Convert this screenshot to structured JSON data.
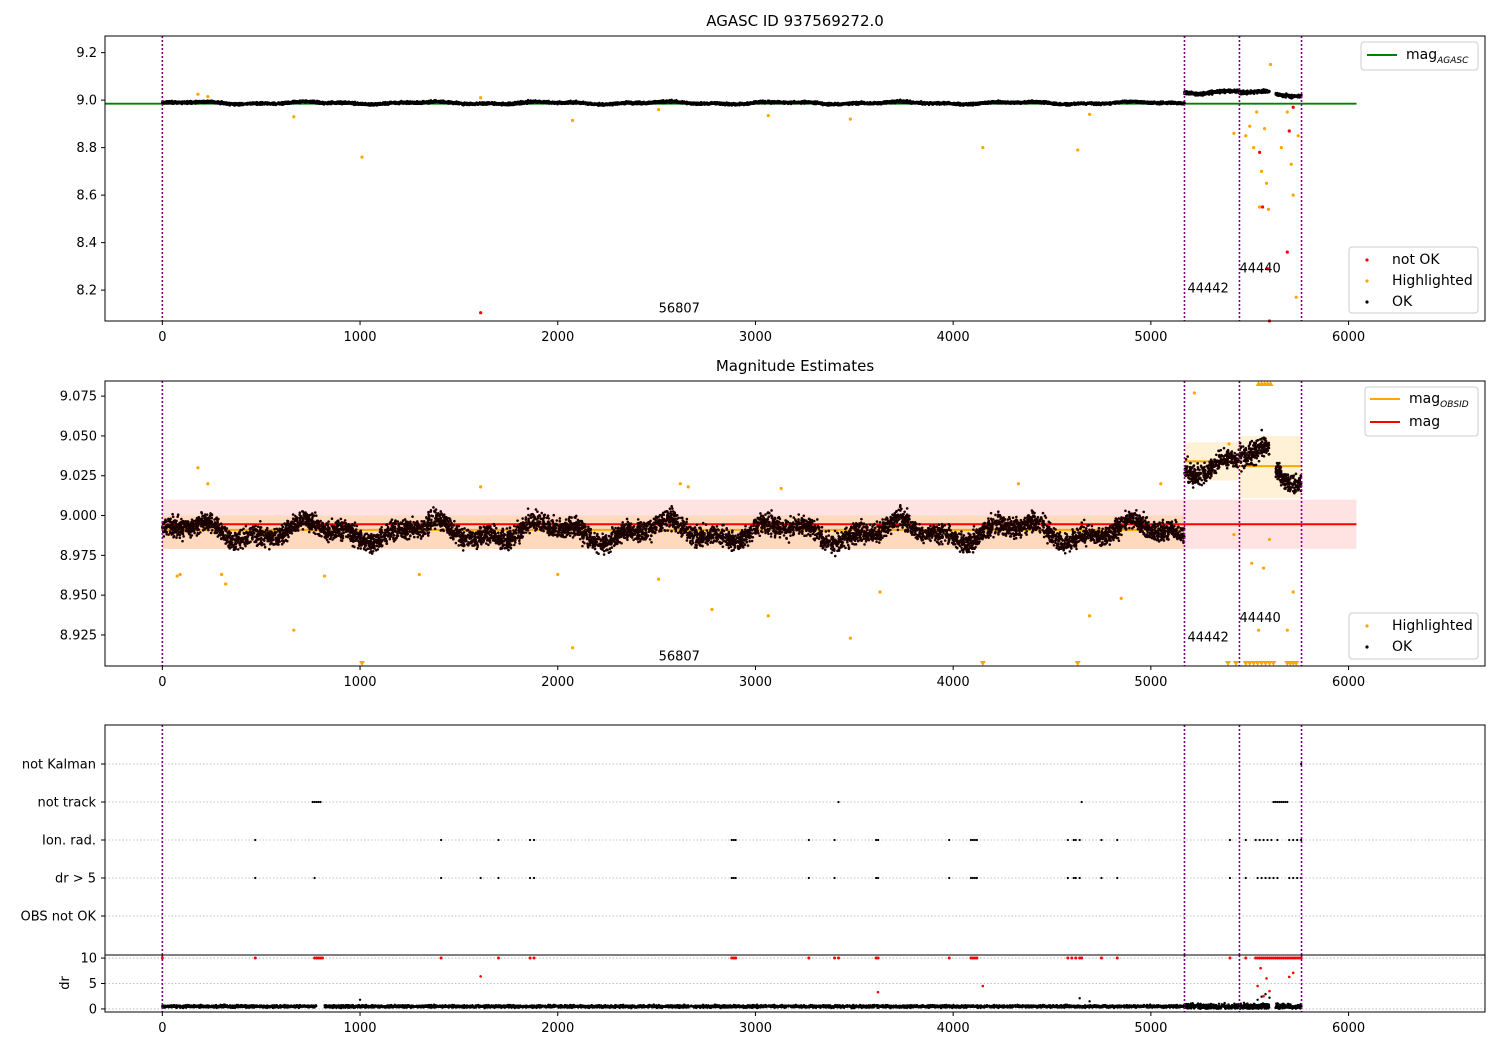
{
  "chart_data": [
    {
      "type": "scatter",
      "title": "AGASC ID 937569272.0",
      "xlabel": "",
      "ylabel": "",
      "xlim": [
        -290,
        6690
      ],
      "ylim": [
        8.07,
        9.27
      ],
      "xticks": [
        0,
        1000,
        2000,
        3000,
        4000,
        5000,
        6000
      ],
      "yticks": [
        8.2,
        8.4,
        8.6,
        8.8,
        9.0,
        9.2
      ],
      "ytick_labels": [
        "8.2",
        "8.4",
        "8.6",
        "8.8",
        "9.0",
        "9.2"
      ],
      "grid": false,
      "obsid_boundaries": [
        0,
        5170,
        5448,
        5762
      ],
      "obsid_labels": [
        {
          "text": "56807",
          "x": 2510,
          "y": 8.105
        },
        {
          "text": "44442",
          "x": 5185,
          "y": 8.19
        },
        {
          "text": "44440",
          "x": 5448,
          "y": 8.275
        }
      ],
      "lines": [
        {
          "name": "mag",
          "sub": "AGASC",
          "color": "#008000",
          "x": [
            -290,
            6040
          ],
          "y": [
            8.985,
            8.985
          ]
        }
      ],
      "ok_segments": [
        {
          "x0": 0,
          "x1": 5170,
          "y": 8.988,
          "spread": 0.009,
          "color": "#000000"
        },
        {
          "x0": 5170,
          "x1": 5448,
          "y": 9.035,
          "spread": 0.012,
          "color": "#000000"
        },
        {
          "x0": 5448,
          "x1": 5600,
          "y": 9.03,
          "spread": 0.012,
          "color": "#000000"
        },
        {
          "x0": 5630,
          "x1": 5762,
          "y": 9.022,
          "spread": 0.012,
          "color": "#000000"
        }
      ],
      "highlighted_points": {
        "color": "#ffa500",
        "x": [
          180,
          230,
          665,
          1010,
          1610,
          2075,
          2510,
          3065,
          3480,
          4150,
          4630,
          4690,
          5420,
          5480,
          5500,
          5520,
          5535,
          5550,
          5560,
          5575,
          5585,
          5595,
          5605,
          5660,
          5690,
          5710,
          5720,
          5735,
          5745
        ],
        "y": [
          9.025,
          9.015,
          8.93,
          8.76,
          9.01,
          8.915,
          8.96,
          8.935,
          8.92,
          8.8,
          8.79,
          8.94,
          8.86,
          8.85,
          8.89,
          8.8,
          8.95,
          8.55,
          8.7,
          8.88,
          8.65,
          8.54,
          9.15,
          8.8,
          8.95,
          8.73,
          8.6,
          8.17,
          8.85
        ]
      },
      "not_ok_points": {
        "color": "#ff0000",
        "x": [
          1610,
          5550,
          5565,
          5590,
          5600,
          5690,
          5700,
          5720
        ],
        "y": [
          8.105,
          8.78,
          8.55,
          8.29,
          8.07,
          8.36,
          8.87,
          8.97
        ]
      },
      "legends": [
        {
          "position": "upper-right",
          "entries": [
            {
              "label": "mag",
              "sub": "AGASC",
              "color": "#008000",
              "kind": "line"
            }
          ]
        },
        {
          "position": "lower-right",
          "entries": [
            {
              "label": "not OK",
              "color": "#ff0000",
              "kind": "point"
            },
            {
              "label": "Highlighted",
              "color": "#ffa500",
              "kind": "point"
            },
            {
              "label": "OK",
              "color": "#000000",
              "kind": "point"
            }
          ]
        }
      ]
    },
    {
      "type": "scatter",
      "title": "Magnitude Estimates",
      "xlabel": "",
      "ylabel": "",
      "xlim": [
        -290,
        6690
      ],
      "ylim": [
        8.9055,
        9.0845
      ],
      "xticks": [
        0,
        1000,
        2000,
        3000,
        4000,
        5000,
        6000
      ],
      "yticks": [
        8.925,
        8.95,
        8.975,
        9.0,
        9.025,
        9.05,
        9.075
      ],
      "ytick_labels": [
        "8.925",
        "8.950",
        "8.975",
        "9.000",
        "9.025",
        "9.050",
        "9.075"
      ],
      "grid": false,
      "obsid_boundaries": [
        0,
        5170,
        5448,
        5762
      ],
      "obsid_labels": [
        {
          "text": "56807",
          "x": 2510,
          "y": 8.909
        },
        {
          "text": "44442",
          "x": 5185,
          "y": 8.921
        },
        {
          "text": "44440",
          "x": 5448,
          "y": 8.933
        }
      ],
      "bands": [
        {
          "color": "#ff0000",
          "opacity": 0.11,
          "x0": 0,
          "x1": 6040,
          "y0": 8.979,
          "y1": 9.01
        },
        {
          "color": "#ffa500",
          "opacity": 0.16,
          "x0": 0,
          "x1": 5170,
          "y0": 8.979,
          "y1": 9.0
        },
        {
          "color": "#ffa500",
          "opacity": 0.16,
          "x0": 5170,
          "x1": 5448,
          "y0": 9.022,
          "y1": 9.046
        },
        {
          "color": "#ffa500",
          "opacity": 0.16,
          "x0": 5448,
          "x1": 5762,
          "y0": 9.011,
          "y1": 9.05
        }
      ],
      "lines": [
        {
          "name": "mag",
          "sub": "OBSID",
          "color": "#ffa500",
          "x": [
            0,
            5170
          ],
          "y": [
            8.991,
            8.991
          ]
        },
        {
          "name": "mag",
          "sub": "OBSID",
          "color": "#ffa500",
          "x": [
            5170,
            5448
          ],
          "y": [
            9.034,
            9.034
          ]
        },
        {
          "name": "mag",
          "sub": "OBSID",
          "color": "#ffa500",
          "x": [
            5448,
            5762
          ],
          "y": [
            9.031,
            9.031
          ]
        },
        {
          "name": "mag",
          "color": "#ff0000",
          "x": [
            0,
            6040
          ],
          "y": [
            8.9945,
            8.9945
          ]
        }
      ],
      "ok_segments": [
        {
          "x0": 0,
          "x1": 5170,
          "y": 8.99,
          "spread": 0.011,
          "color": "#1a0000"
        },
        {
          "x0": 5170,
          "x1": 5448,
          "y": 9.033,
          "spread": 0.011,
          "color": "#1a0000"
        },
        {
          "x0": 5448,
          "x1": 5600,
          "y": 9.035,
          "spread": 0.013,
          "color": "#1a0000"
        },
        {
          "x0": 5630,
          "x1": 5762,
          "y": 9.025,
          "spread": 0.011,
          "color": "#1a0000"
        }
      ],
      "highlighted_points": {
        "color": "#ffa500",
        "x": [
          75,
          90,
          180,
          230,
          300,
          320,
          665,
          820,
          1300,
          1610,
          2000,
          2075,
          2510,
          2620,
          2660,
          2780,
          3065,
          3130,
          3480,
          3630,
          4330,
          4690,
          4850,
          5050,
          5220,
          5395,
          5420,
          5510,
          5545,
          5570,
          5600,
          5690,
          5720
        ],
        "y": [
          8.962,
          8.963,
          9.03,
          9.02,
          8.963,
          8.957,
          8.928,
          8.962,
          8.963,
          9.018,
          8.963,
          8.917,
          8.96,
          9.02,
          9.018,
          8.941,
          8.937,
          9.017,
          8.923,
          8.952,
          9.02,
          8.937,
          8.948,
          9.02,
          9.077,
          9.045,
          8.988,
          8.97,
          8.928,
          8.967,
          8.985,
          8.928,
          8.952
        ]
      },
      "lower_markers": {
        "color": "#ffa500",
        "y": 8.9055,
        "x": [
          1010,
          4150,
          4630,
          5390,
          5430,
          5480,
          5500,
          5520,
          5540,
          5560,
          5580,
          5600,
          5620,
          5690,
          5705,
          5720,
          5735
        ]
      },
      "upper_markers": {
        "color": "#ffa500",
        "y": 9.0845,
        "x": [
          5545,
          5560,
          5575,
          5590,
          5605
        ]
      },
      "legends": [
        {
          "position": "upper-right",
          "entries": [
            {
              "label": "mag",
              "sub": "OBSID",
              "color": "#ffa500",
              "kind": "line"
            },
            {
              "label": "mag",
              "color": "#ff0000",
              "kind": "line"
            }
          ]
        },
        {
          "position": "lower-right",
          "entries": [
            {
              "label": "Highlighted",
              "color": "#ffa500",
              "kind": "point"
            },
            {
              "label": "OK",
              "color": "#000000",
              "kind": "point"
            }
          ]
        }
      ]
    },
    {
      "type": "scatter",
      "title": "",
      "xlabel": "",
      "ylabel": "",
      "xlim": [
        -290,
        6690
      ],
      "categories": [
        "not Kalman",
        "not track",
        "Ion. rad.",
        "dr > 5",
        "OBS not OK"
      ],
      "grid": true,
      "obsid_boundaries": [
        0,
        5170,
        5448,
        5762
      ],
      "flags": {
        "not Kalman": [
          5760
        ],
        "not track": [
          760,
          770,
          780,
          790,
          800,
          3420,
          4650,
          5620,
          5630,
          5640,
          5650,
          5660,
          5670,
          5680,
          5690
        ],
        "Ion. rad.": [
          470,
          1410,
          1700,
          1860,
          1880,
          2880,
          2890,
          2900,
          3270,
          3400,
          3610,
          3620,
          3980,
          4090,
          4100,
          4110,
          4120,
          4580,
          4610,
          4620,
          4640,
          4750,
          4830,
          5400,
          5480,
          5530,
          5550,
          5570,
          5590,
          5610,
          5640,
          5700,
          5720,
          5740,
          5760
        ],
        "dr > 5": [
          470,
          770,
          1410,
          1610,
          1700,
          1860,
          1880,
          2880,
          2890,
          2900,
          3270,
          3400,
          3610,
          3620,
          3980,
          4090,
          4100,
          4110,
          4120,
          4580,
          4610,
          4620,
          4640,
          4750,
          4830,
          5400,
          5480,
          5540,
          5560,
          5580,
          5600,
          5620,
          5640,
          5700,
          5720,
          5740,
          5760
        ],
        "OBS not OK": []
      }
    },
    {
      "type": "scatter",
      "title": "",
      "xlabel": "",
      "ylabel": "dr",
      "xlim": [
        -290,
        6690
      ],
      "ylim": [
        -0.6,
        10.6
      ],
      "xticks": [
        0,
        1000,
        2000,
        3000,
        4000,
        5000,
        6000
      ],
      "yticks": [
        0,
        5,
        10
      ],
      "ytick_labels": [
        "0",
        "5",
        "10"
      ],
      "grid": true,
      "obsid_boundaries": [
        0,
        5170,
        5448,
        5762
      ],
      "ok_baseline": {
        "color": "#000000",
        "y": 0.5,
        "spread": 0.25,
        "segments": [
          [
            0,
            780
          ],
          [
            820,
            5170
          ],
          [
            5170,
            5448
          ],
          [
            5448,
            5600
          ],
          [
            5630,
            5762
          ]
        ]
      },
      "capped_points": {
        "color": "#ff0000",
        "y": 10,
        "x": [
          0,
          470,
          770,
          780,
          790,
          800,
          810,
          1410,
          1700,
          1860,
          1880,
          2880,
          2890,
          2900,
          3270,
          3400,
          3420,
          3610,
          3620,
          3980,
          4090,
          4100,
          4110,
          4120,
          4580,
          4600,
          4620,
          4640,
          4650,
          4750,
          4830,
          5400,
          5480,
          5530,
          5540,
          5550,
          5560,
          5570,
          5580,
          5590,
          5600,
          5610,
          5620,
          5630,
          5640,
          5650,
          5660,
          5670,
          5680,
          5690,
          5700,
          5710,
          5720,
          5730,
          5740,
          5750,
          5760
        ]
      },
      "red_points": {
        "color": "#ff0000",
        "x": [
          1610,
          3620,
          4150,
          5540,
          5555,
          5570,
          5585,
          5600,
          5700,
          5720
        ],
        "y": [
          6.4,
          3.3,
          4.5,
          4.5,
          8.0,
          2.5,
          6.0,
          3.5,
          6.3,
          7.1
        ]
      },
      "extra_ok_points": {
        "color": "#000000",
        "x": [
          1000,
          4640,
          4690,
          5540,
          5560,
          5580,
          5600
        ],
        "y": [
          1.8,
          2.1,
          1.5,
          1.8,
          2.4,
          2.9,
          2.2
        ]
      }
    }
  ]
}
